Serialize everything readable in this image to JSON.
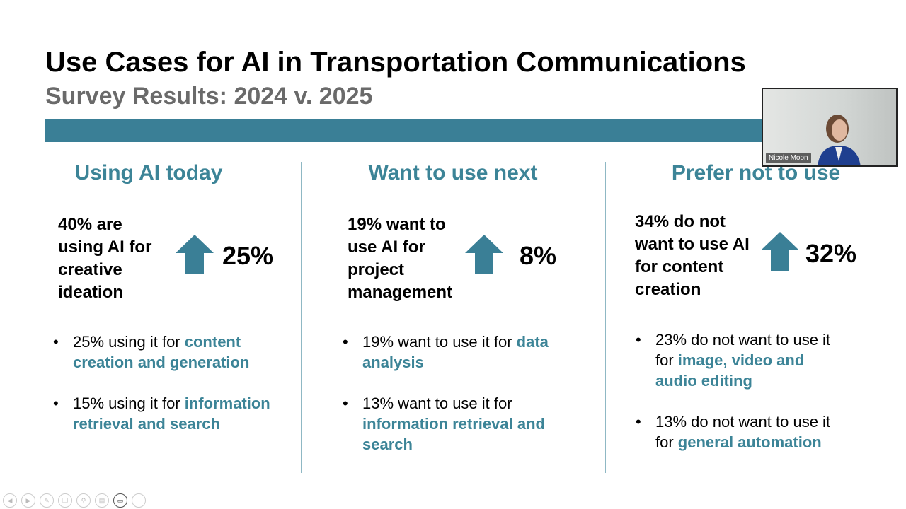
{
  "slide": {
    "title": "Use Cases for AI in Transportation Communications",
    "subtitle": "Survey Results: 2024 v. 2025",
    "accent": "#3a7f96",
    "columns": [
      {
        "heading": "Using AI today",
        "stat": "40% are using AI for creative ideation",
        "change": "25%",
        "bullets": [
          {
            "prefix": "25% using it for ",
            "highlight": "content creation and generation"
          },
          {
            "prefix": "15% using it for ",
            "highlight": "information retrieval and search"
          }
        ]
      },
      {
        "heading": "Want to use next",
        "stat": "19% want to use AI for project management",
        "change": "8%",
        "bullets": [
          {
            "prefix": "19% want to use it for ",
            "highlight": "data analysis"
          },
          {
            "prefix": "13% want to use it for ",
            "highlight": "information retrieval and search"
          }
        ]
      },
      {
        "heading": "Prefer not to use",
        "stat": "34% do not want to use AI for content creation",
        "change": "32%",
        "bullets": [
          {
            "prefix": "23% do not want to use it for ",
            "highlight": "image, video and audio editing"
          },
          {
            "prefix": "13% do not want to use it for ",
            "highlight": "general automation"
          }
        ]
      }
    ]
  },
  "video": {
    "participant_name": "Nicole Moon"
  },
  "toolbar": {
    "icons": [
      "previous-icon",
      "pointer-icon",
      "pen-icon",
      "copy-icon",
      "zoom-icon",
      "subtitles-icon",
      "camera-icon",
      "more-icon"
    ]
  }
}
